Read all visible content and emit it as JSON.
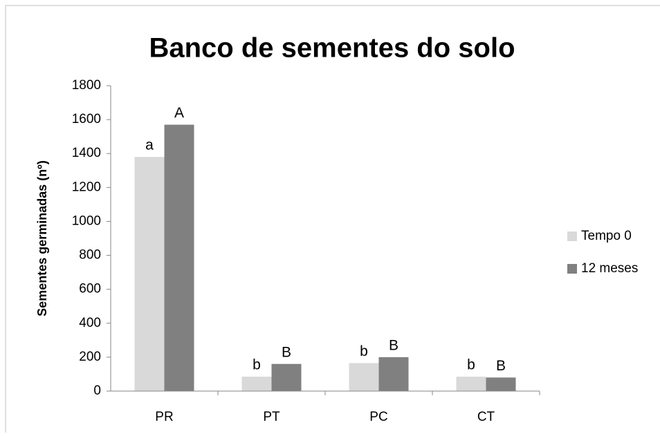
{
  "chart_data": {
    "type": "bar",
    "title": "Banco de sementes do solo",
    "y_label": "Sementes germinadas  (nº)",
    "categories": [
      "PR",
      "PT",
      "PC",
      "CT"
    ],
    "series": [
      {
        "name": "Tempo 0",
        "color": "#d9d9d9",
        "values": [
          1380,
          85,
          165,
          85
        ],
        "annotations": [
          "a",
          "b",
          "b",
          "b"
        ]
      },
      {
        "name": "12 meses",
        "color": "#808080",
        "values": [
          1570,
          160,
          200,
          80
        ],
        "annotations": [
          "A",
          "B",
          "B",
          "B"
        ]
      }
    ],
    "ylim": [
      0,
      1800
    ],
    "yticks": [
      0,
      200,
      400,
      600,
      800,
      1000,
      1200,
      1400,
      1600,
      1800
    ],
    "legend": "right"
  }
}
